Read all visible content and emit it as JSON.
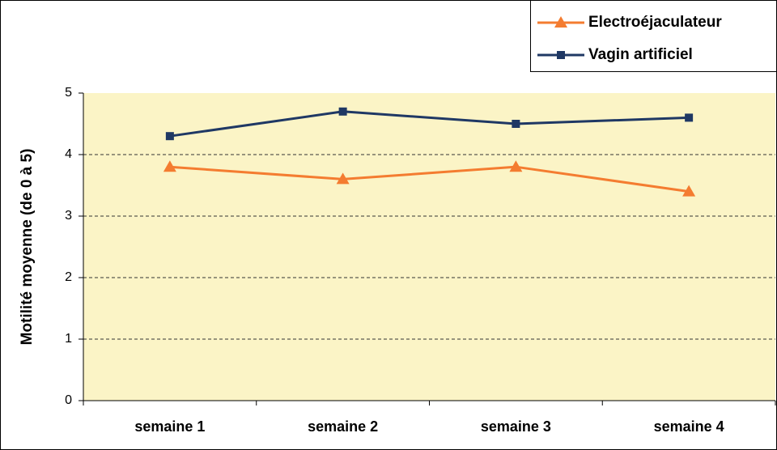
{
  "chart_data": {
    "type": "line",
    "y_label": "Motilité moyenne (de 0 à 5)",
    "categories": [
      "semaine 1",
      "semaine 2",
      "semaine 3",
      "semaine 4"
    ],
    "series": [
      {
        "name": "Electroéjaculateur",
        "color": "#f47c30",
        "marker": "triangle",
        "values": [
          3.8,
          3.6,
          3.8,
          3.4
        ]
      },
      {
        "name": "Vagin artificiel",
        "color": "#1f3864",
        "marker": "square",
        "values": [
          4.3,
          4.7,
          4.5,
          4.6
        ]
      }
    ],
    "ylim": [
      0,
      5
    ],
    "yticks": [
      0,
      1,
      2,
      3,
      4,
      5
    ],
    "grid": true,
    "legend": "top-right"
  }
}
